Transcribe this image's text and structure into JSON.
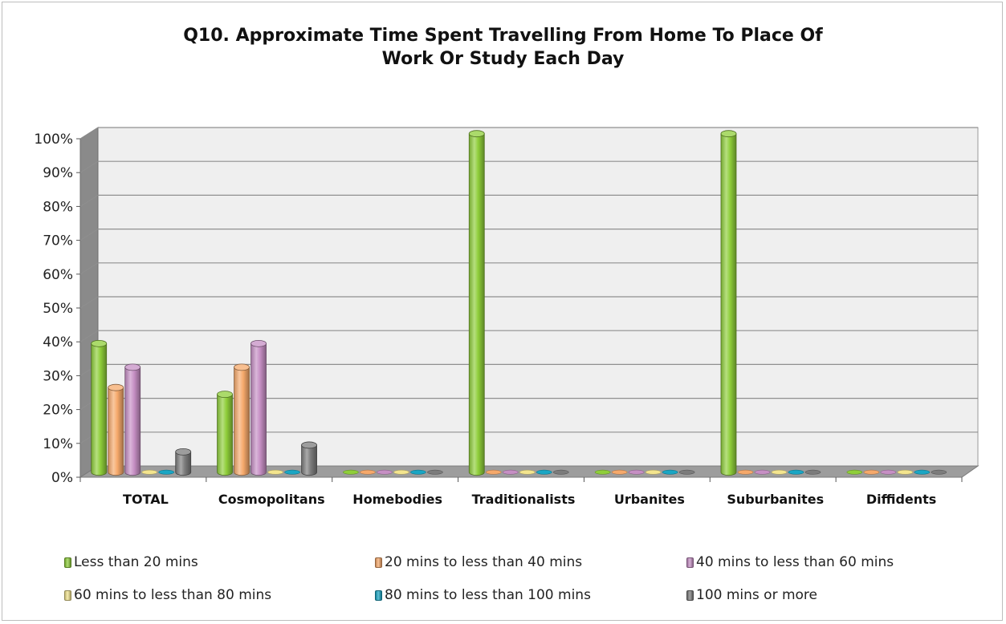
{
  "chart_data": {
    "type": "bar",
    "title_lines": [
      "Q10. Approximate Time Spent Travelling From Home To Place Of",
      "Work Or Study Each Day"
    ],
    "categories": [
      "TOTAL",
      "Cosmopolitans",
      "Homebodies",
      "Traditionalists",
      "Urbanites",
      "Suburbanites",
      "Diffidents"
    ],
    "ylim": [
      0,
      100
    ],
    "yticks": [
      "0%",
      "10%",
      "20%",
      "30%",
      "40%",
      "50%",
      "60%",
      "70%",
      "80%",
      "90%",
      "100%"
    ],
    "grid": true,
    "legend_position": "bottom",
    "series": [
      {
        "name": "Less than 20 mins",
        "color": "#8fce3a",
        "values": [
          38,
          23,
          0,
          100,
          0,
          100,
          0
        ]
      },
      {
        "name": "20 mins to less than 40 mins",
        "color": "#f6a96b",
        "values": [
          25,
          31,
          0,
          0,
          0,
          0,
          0
        ]
      },
      {
        "name": "40 mins to less than 60 mins",
        "color": "#c68fc4",
        "values": [
          31,
          38,
          0,
          0,
          0,
          0,
          0
        ]
      },
      {
        "name": "60 mins to less than 80 mins",
        "color": "#f4e58e",
        "values": [
          0,
          0,
          0,
          0,
          0,
          0,
          0
        ]
      },
      {
        "name": "80 mins to less than 100 mins",
        "color": "#1aa6c4",
        "values": [
          0,
          0,
          0,
          0,
          0,
          0,
          0
        ]
      },
      {
        "name": "100 mins or more",
        "color": "#7c7c7c",
        "values": [
          6,
          8,
          0,
          0,
          0,
          0,
          0
        ]
      }
    ]
  }
}
